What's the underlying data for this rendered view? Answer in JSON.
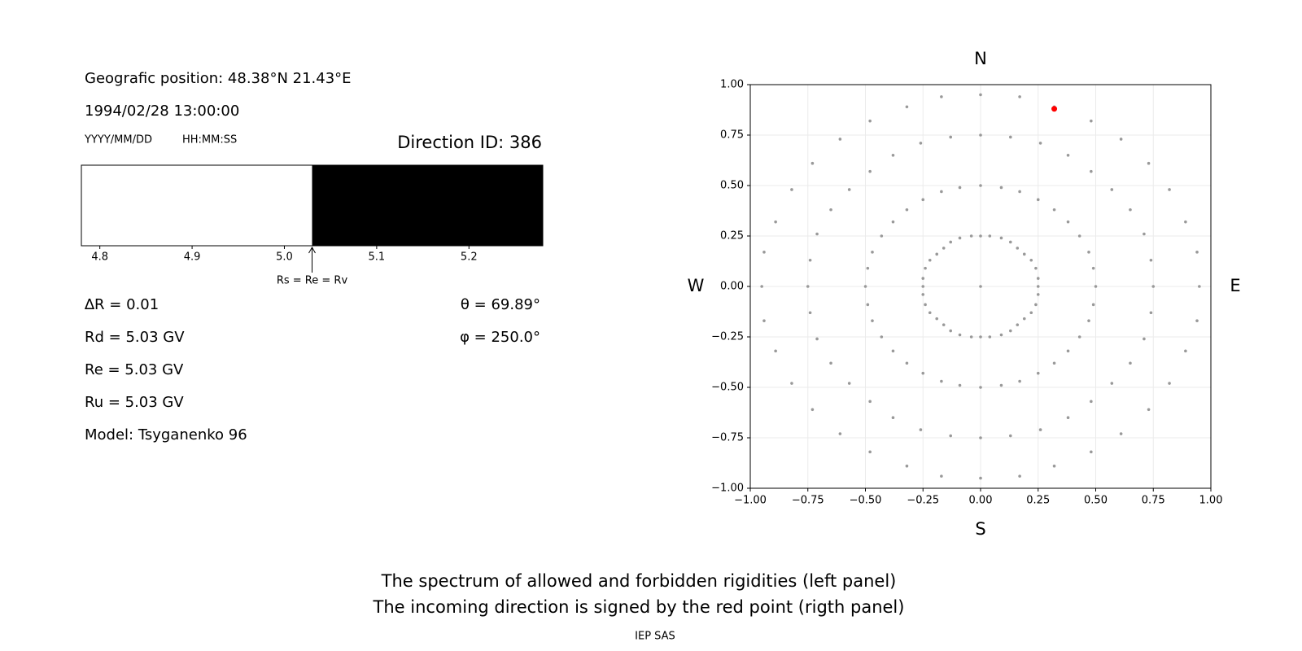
{
  "info": {
    "position": "Geografic position: 48.38°N 21.43°E",
    "datetime": "1994/02/28 13:00:00",
    "date_format": "YYYY/MM/DD",
    "time_format": "HH:MM:SS",
    "direction_id": "Direction ID: 386",
    "left_stats": [
      "∆R = 0.01",
      "Rd = 5.03 GV",
      "Re = 5.03 GV",
      "Ru = 5.03 GV",
      "Model: Tsyganenko 96"
    ],
    "right_stats": [
      "θ = 69.89°",
      "φ = 250.0°"
    ]
  },
  "chart_data": [
    {
      "type": "spectrum",
      "xlim": [
        4.78,
        5.28
      ],
      "xticks": [
        4.8,
        4.9,
        {
          "value": 5,
          "label": "5.0"
        },
        5.1,
        5.2
      ],
      "segments": [
        {
          "from": 4.78,
          "to": 5.03,
          "color": "#ffffff"
        },
        {
          "from": 5.03,
          "to": 5.28,
          "color": "#000000"
        }
      ],
      "marker": {
        "value": 5.03,
        "label": "Rs = Re = Rv"
      }
    },
    {
      "type": "scatter",
      "xlim": [
        -1,
        1
      ],
      "ylim": [
        -1,
        1
      ],
      "grid": true,
      "directions": {
        "top": "N",
        "bottom": "S",
        "left": "W",
        "right": "E"
      },
      "xticks": [
        {
          "value": -1,
          "label": "−1.00"
        },
        {
          "value": -0.75,
          "label": "−0.75"
        },
        {
          "value": -0.5,
          "label": "−0.50"
        },
        {
          "value": -0.25,
          "label": "−0.25"
        },
        {
          "value": 0,
          "label": "0.00"
        },
        {
          "value": 0.25,
          "label": "0.25"
        },
        {
          "value": 0.5,
          "label": "0.50"
        },
        {
          "value": 0.75,
          "label": "0.75"
        },
        {
          "value": 1,
          "label": "1.00"
        }
      ],
      "yticks": [
        {
          "value": -1,
          "label": "−1.00"
        },
        {
          "value": -0.75,
          "label": "−0.75"
        },
        {
          "value": -0.5,
          "label": "−0.50"
        },
        {
          "value": -0.25,
          "label": "−0.25"
        },
        {
          "value": 0,
          "label": "0.00"
        },
        {
          "value": 0.25,
          "label": "0.25"
        },
        {
          "value": 0.5,
          "label": "0.50"
        },
        {
          "value": 0.75,
          "label": "0.75"
        },
        {
          "value": 1,
          "label": "1.00"
        }
      ],
      "series": [
        {
          "color": "#999999",
          "x": [
            0,
            0.04,
            0.09,
            0.13,
            0.16,
            0.19,
            0.22,
            0.24,
            0.25,
            0.25,
            0.25,
            0.24,
            0.22,
            0.19,
            0.16,
            0.13,
            0.09,
            0.04,
            0,
            -0.04,
            -0.09,
            -0.13,
            -0.16,
            -0.19,
            -0.22,
            -0.24,
            -0.25,
            -0.25,
            -0.25,
            -0.24,
            -0.22,
            -0.19,
            -0.16,
            -0.13,
            -0.09,
            -0.04,
            0,
            0.09,
            0.17,
            0.25,
            0.32,
            0.38,
            0.43,
            0.47,
            0.49,
            0.5,
            0.49,
            0.47,
            0.43,
            0.38,
            0.32,
            0.25,
            0.17,
            0.09,
            0,
            -0.09,
            -0.17,
            -0.25,
            -0.32,
            -0.38,
            -0.43,
            -0.47,
            -0.49,
            -0.5,
            -0.49,
            -0.47,
            -0.43,
            -0.38,
            -0.32,
            -0.25,
            -0.17,
            -0.09,
            0,
            0.13,
            0.26,
            0.38,
            0.48,
            0.57,
            0.65,
            0.71,
            0.74,
            0.75,
            0.74,
            0.71,
            0.65,
            0.57,
            0.48,
            0.38,
            0.26,
            0.13,
            0,
            -0.13,
            -0.26,
            -0.38,
            -0.48,
            -0.57,
            -0.65,
            -0.71,
            -0.74,
            -0.75,
            -0.74,
            -0.71,
            -0.65,
            -0.57,
            -0.48,
            -0.38,
            -0.26,
            -0.13,
            0,
            0.17,
            0.32,
            0.48,
            0.61,
            0.73,
            0.82,
            0.89,
            0.94,
            0.95,
            0.94,
            0.89,
            0.82,
            0.73,
            0.61,
            0.48,
            0.32,
            0.17,
            0,
            -0.17,
            -0.32,
            -0.48,
            -0.61,
            -0.73,
            -0.82,
            -0.89,
            -0.94,
            -0.95,
            -0.94,
            -0.89,
            -0.82,
            -0.73,
            -0.61,
            -0.48,
            -0.32,
            -0.17,
            0
          ],
          "y": [
            0.25,
            0.25,
            0.24,
            0.22,
            0.19,
            0.16,
            0.13,
            0.09,
            0.04,
            0,
            -0.04,
            -0.09,
            -0.13,
            -0.16,
            -0.19,
            -0.22,
            -0.24,
            -0.25,
            -0.25,
            -0.25,
            -0.24,
            -0.22,
            -0.19,
            -0.16,
            -0.13,
            -0.09,
            -0.04,
            0,
            0.04,
            0.09,
            0.13,
            0.16,
            0.19,
            0.22,
            0.24,
            0.25,
            0.5,
            0.49,
            0.47,
            0.43,
            0.38,
            0.32,
            0.25,
            0.17,
            0.09,
            0,
            -0.09,
            -0.17,
            -0.25,
            -0.32,
            -0.38,
            -0.43,
            -0.47,
            -0.49,
            -0.5,
            -0.49,
            -0.47,
            -0.43,
            -0.38,
            -0.32,
            -0.25,
            -0.17,
            -0.09,
            0,
            0.09,
            0.17,
            0.25,
            0.32,
            0.38,
            0.43,
            0.47,
            0.49,
            0.75,
            0.74,
            0.71,
            0.65,
            0.57,
            0.48,
            0.38,
            0.26,
            0.13,
            0,
            -0.13,
            -0.26,
            -0.38,
            -0.48,
            -0.57,
            -0.65,
            -0.71,
            -0.74,
            -0.75,
            -0.74,
            -0.71,
            -0.65,
            -0.57,
            -0.48,
            -0.38,
            -0.26,
            -0.13,
            0,
            0.13,
            0.26,
            0.38,
            0.48,
            0.57,
            0.65,
            0.71,
            0.74,
            0.95,
            0.94,
            0.89,
            0.82,
            0.73,
            0.61,
            0.48,
            0.32,
            0.17,
            0,
            -0.17,
            -0.32,
            -0.48,
            -0.61,
            -0.73,
            -0.82,
            -0.89,
            -0.94,
            -0.95,
            -0.94,
            -0.89,
            -0.82,
            -0.73,
            -0.61,
            -0.48,
            -0.32,
            -0.17,
            0,
            0.17,
            0.32,
            0.48,
            0.61,
            0.73,
            0.82,
            0.89,
            0.94,
            0
          ]
        },
        {
          "color": "#ff0000",
          "x": [
            0.32
          ],
          "y": [
            0.88
          ]
        }
      ]
    }
  ],
  "caption": [
    "The spectrum of allowed and forbidden rigidities (left panel)",
    "The incoming direction is signed by the red point (rigth panel)",
    "IEP SAS"
  ]
}
